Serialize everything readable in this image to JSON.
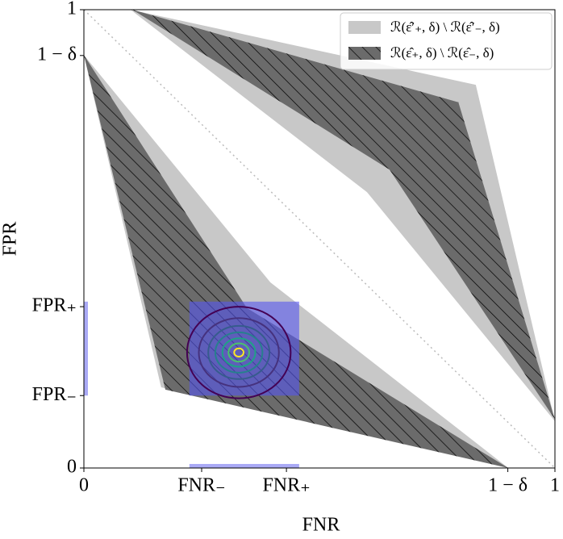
{
  "chart_data": {
    "type": "region",
    "xlabel": "FNR",
    "ylabel": "FPR",
    "xlim": [
      0,
      1
    ],
    "ylim": [
      0,
      1
    ],
    "xticks": [
      0,
      {
        "value": 0.25,
        "label": "FNR₋"
      },
      {
        "value": 0.43,
        "label": "FNR₊"
      },
      {
        "value": 0.9,
        "label": "1 − δ"
      },
      1
    ],
    "yticks": [
      0,
      {
        "value": 0.158,
        "label": "FPR₋"
      },
      {
        "value": 0.352,
        "label": "FPR₊"
      },
      {
        "value": 0.9,
        "label": "1 − δ"
      },
      1
    ],
    "legend": "upper right",
    "series": [
      {
        "name": "ℛ(ε̂′₊, δ) \\ ℛ(ε̂′₋, δ)",
        "color": "#c8c8c8",
        "hatch": false,
        "polygons": [
          {
            "x": [
              0.099,
              0.832,
              1.0,
              0.601
            ],
            "y": [
              1.0,
              0.836,
              0.102,
              0.602
            ]
          },
          {
            "x": [
              0,
              0.396,
              0.901,
              0.164
            ],
            "y": [
              0.901,
              0.405,
              0,
              0.176
            ]
          }
        ]
      },
      {
        "name": "ℛ(ε̂₊, δ) \\ ℛ(ε̂₋, δ)",
        "color": "#6b6b6b",
        "hatch": true,
        "polygons": [
          {
            "x": [
              0.103,
              0.795,
              1.0,
              0.649
            ],
            "y": [
              1.0,
              0.798,
              0.106,
              0.651
            ]
          },
          {
            "x": [
              0,
              0.346,
              0.901,
              0.173
            ],
            "y": [
              0.901,
              0.349,
              0,
              0.171
            ]
          }
        ]
      }
    ],
    "box": {
      "x": [
        0.224,
        0.457
      ],
      "y": [
        0.158,
        0.363
      ],
      "color": "#5555ee"
    },
    "contours": {
      "center": [
        0.329,
        0.252
      ],
      "rx": [
        0.11,
        0.085,
        0.065,
        0.05,
        0.035,
        0.022,
        0.01
      ],
      "ry": [
        0.1,
        0.075,
        0.058,
        0.044,
        0.031,
        0.02,
        0.009
      ],
      "colors": [
        "#440154",
        "#46327e",
        "#365c8d",
        "#277f8e",
        "#1fa187",
        "#4ac16d",
        "#fde725"
      ]
    }
  }
}
